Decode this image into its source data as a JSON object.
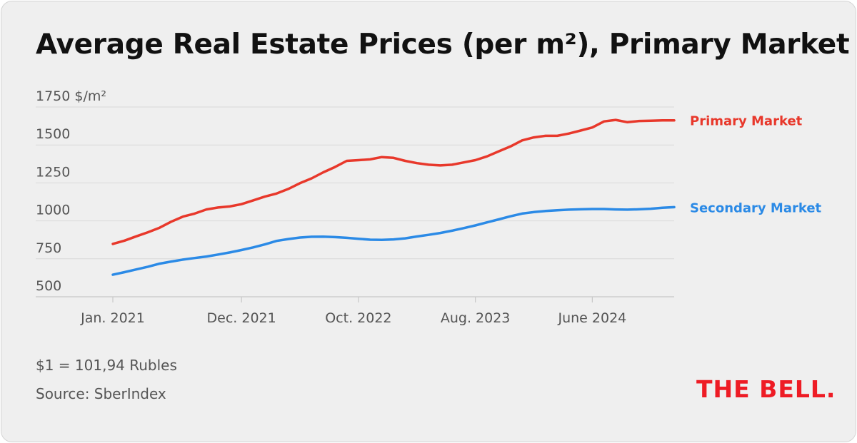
{
  "title": "Average Real Estate Prices (per m²), Primary Market",
  "footnote_rate": "$1 = 101,94 Rubles",
  "footnote_source": "Source: SberIndex",
  "logo_text": "THE BELL.",
  "colors": {
    "primary_series": "#e8382b",
    "secondary_series": "#2b8ae6",
    "background": "#efefef",
    "gridline": "#d9d9d9",
    "axis": "#c8c8c8",
    "tick_text": "#555555",
    "logo": "#ee1c25"
  },
  "chart_data": {
    "type": "line",
    "title": "Average Real Estate Prices (per m²), Primary Market",
    "y_unit_label": "$/m²",
    "ylim": [
      500,
      1750
    ],
    "yticks": [
      500,
      750,
      1000,
      1250,
      1500,
      1750
    ],
    "ytick_labels": [
      "500",
      "750",
      "1000",
      "1250",
      "1500",
      "1750"
    ],
    "x_range": [
      "2021-01",
      "2025-01"
    ],
    "xtick_labels": [
      {
        "label": "Jan. 2021",
        "date": "2021-01"
      },
      {
        "label": "Dec. 2021",
        "date": "2021-12"
      },
      {
        "label": "Oct. 2022",
        "date": "2022-10"
      },
      {
        "label": "Aug. 2023",
        "date": "2023-08"
      },
      {
        "label": "June 2024",
        "date": "2024-06"
      }
    ],
    "grid": true,
    "legend": "labels at right end of each line",
    "x": [
      "2021-01",
      "2021-02",
      "2021-03",
      "2021-04",
      "2021-05",
      "2021-06",
      "2021-07",
      "2021-08",
      "2021-09",
      "2021-10",
      "2021-11",
      "2021-12",
      "2022-01",
      "2022-02",
      "2022-03",
      "2022-04",
      "2022-05",
      "2022-06",
      "2022-07",
      "2022-08",
      "2022-09",
      "2022-10",
      "2022-11",
      "2022-12",
      "2023-01",
      "2023-02",
      "2023-03",
      "2023-04",
      "2023-05",
      "2023-06",
      "2023-07",
      "2023-08",
      "2023-09",
      "2023-10",
      "2023-11",
      "2023-12",
      "2024-01",
      "2024-02",
      "2024-03",
      "2024-04",
      "2024-05",
      "2024-06",
      "2024-07",
      "2024-08",
      "2024-09",
      "2024-10",
      "2024-11",
      "2024-12",
      "2025-01"
    ],
    "series": [
      {
        "name": "Primary Market",
        "values": [
          848,
          870,
          898,
          925,
          955,
          995,
          1028,
          1048,
          1075,
          1088,
          1095,
          1110,
          1135,
          1160,
          1180,
          1210,
          1248,
          1280,
          1320,
          1355,
          1395,
          1400,
          1405,
          1420,
          1415,
          1395,
          1380,
          1370,
          1365,
          1370,
          1385,
          1400,
          1425,
          1458,
          1490,
          1530,
          1550,
          1560,
          1560,
          1575,
          1595,
          1615,
          1655,
          1665,
          1650,
          1658,
          1660,
          1662,
          1662
        ]
      },
      {
        "name": "Secondary Market",
        "values": [
          645,
          662,
          680,
          698,
          718,
          732,
          745,
          755,
          765,
          778,
          792,
          808,
          825,
          845,
          868,
          880,
          890,
          895,
          896,
          893,
          888,
          882,
          876,
          875,
          878,
          885,
          897,
          908,
          920,
          935,
          952,
          970,
          990,
          1010,
          1030,
          1048,
          1058,
          1065,
          1070,
          1074,
          1076,
          1078,
          1078,
          1075,
          1074,
          1076,
          1080,
          1086,
          1090
        ]
      }
    ]
  }
}
